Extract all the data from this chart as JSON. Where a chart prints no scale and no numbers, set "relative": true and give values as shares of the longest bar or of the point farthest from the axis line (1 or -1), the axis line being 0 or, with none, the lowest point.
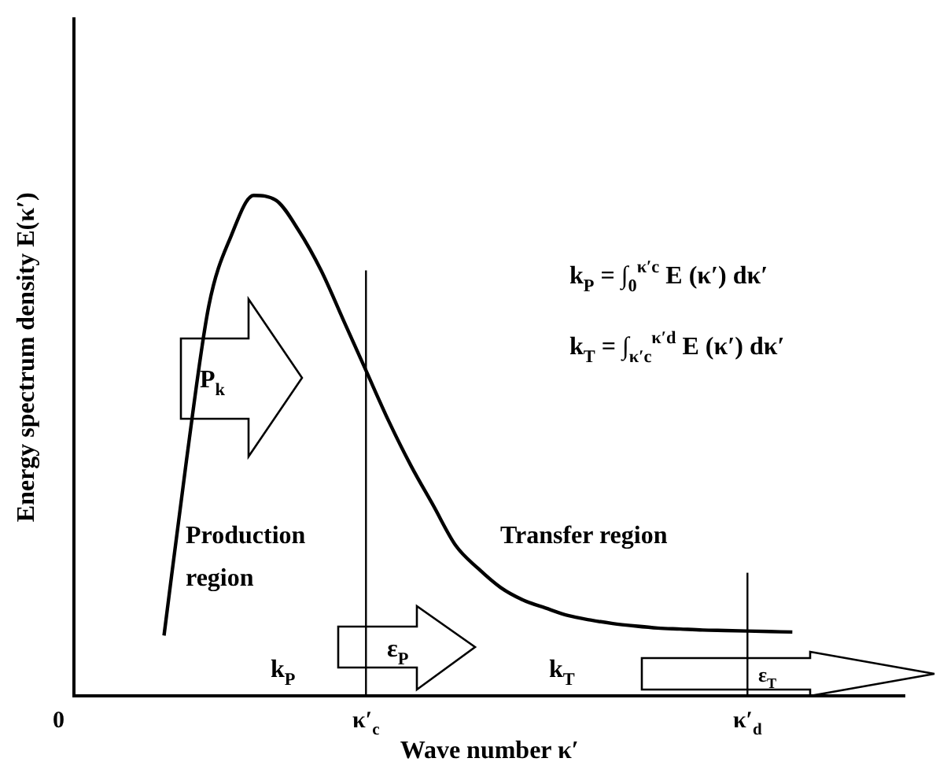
{
  "chart_data": {
    "type": "line",
    "relative": true,
    "xlabel": "Wave number κ′",
    "ylabel": "Energy spectrum density E(κ′)",
    "categories": [
      "0",
      null,
      null,
      null,
      null,
      null,
      null,
      null,
      null,
      null,
      null,
      null,
      null,
      "κ′$_{c}$",
      null,
      null,
      null,
      null,
      null,
      null,
      null,
      null,
      null,
      null,
      null,
      null,
      null,
      null,
      null,
      null,
      "κ′$_{d}$",
      null,
      null,
      null,
      null,
      null,
      null,
      null
    ],
    "series": [
      {
        "color": "#000000",
        "values": [
          null,
          null,
          null,
          null,
          0.12,
          0.47,
          0.78,
          0.92,
          1,
          0.99,
          0.93,
          0.85,
          0.75,
          0.65,
          0.55,
          0.46,
          0.38,
          0.3,
          0.254,
          0.216,
          0.191,
          0.175,
          0.16,
          0.151,
          0.144,
          0.139,
          0.135,
          0.133,
          0.131,
          0.13,
          0.129,
          0.128,
          0.127,
          null,
          null,
          null,
          null,
          null
        ]
      }
    ],
    "ref_lines": [
      {
        "axis": "x",
        "value": "κ′$_{c}$",
        "color": "#000000"
      },
      {
        "axis": "x",
        "value": "κ′$_{d}$",
        "color": "#000000"
      }
    ],
    "annotations": [
      "k$_{P}$ = ∫$_{0}$$^{κ′c}$ E (κ′) dκ′",
      "k$_{T}$ = ∫$_{κ′c}$$^{κ′d}$ E (κ′) dκ′",
      "P$_{k}$",
      "Production",
      "region",
      "Transfer region",
      "k$_{P}$",
      "ε$_{P}$",
      "k$_{T}$",
      "ε$_{T}$"
    ],
    "grid": false,
    "legend": false,
    "marker": "none",
    "line_style": "solid"
  }
}
